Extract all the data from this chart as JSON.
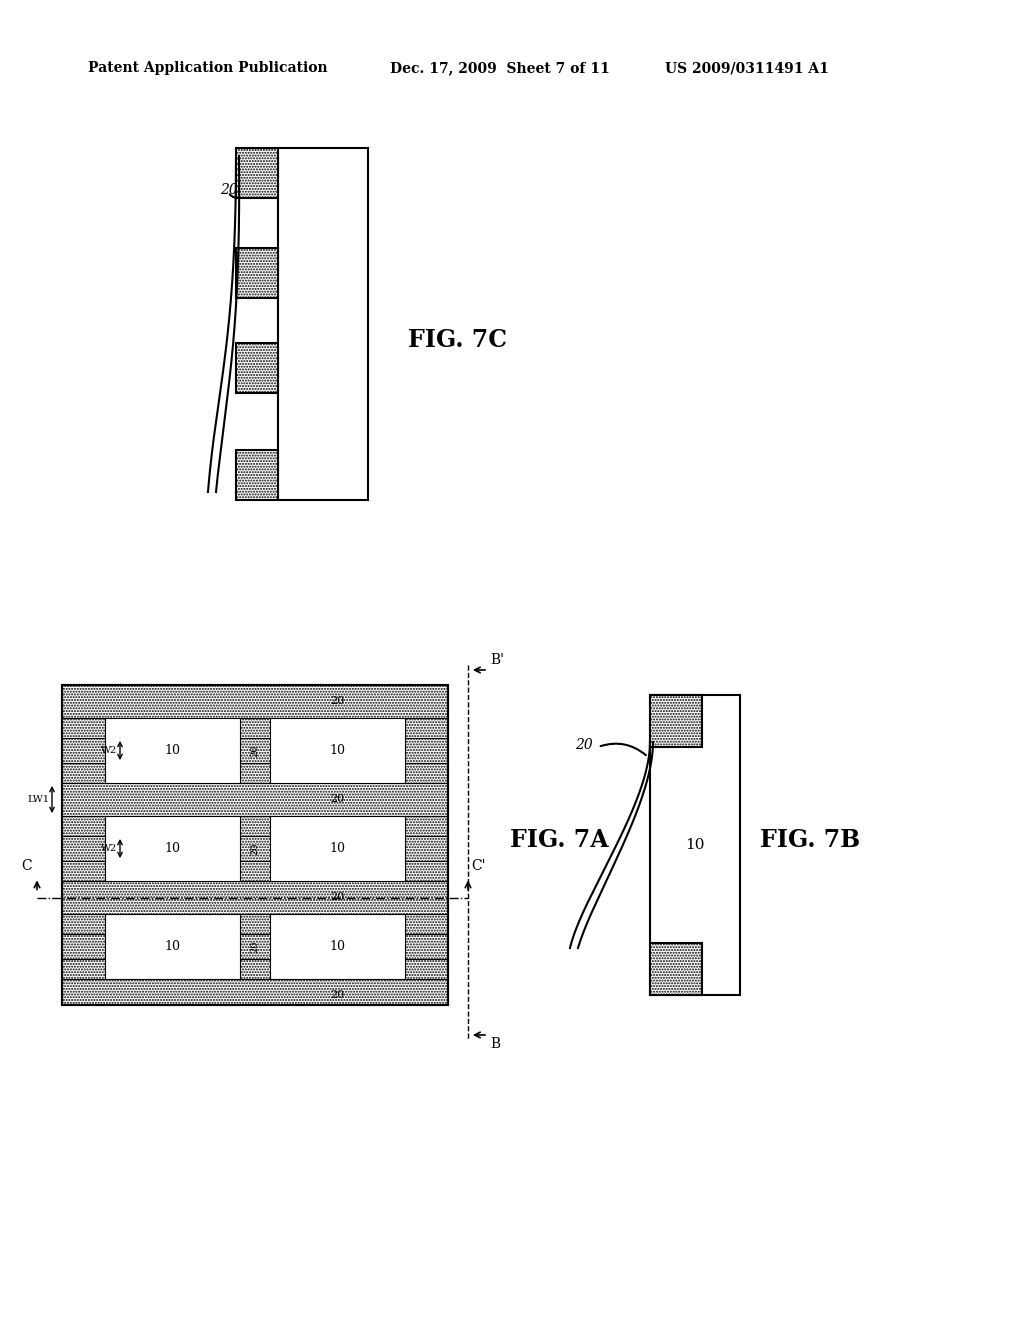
{
  "header_left": "Patent Application Publication",
  "header_mid": "Dec. 17, 2009  Sheet 7 of 11",
  "header_right": "US 2009/0311491 A1",
  "fig7c_label": "FIG. 7C",
  "fig7a_label": "FIG. 7A",
  "fig7b_label": "FIG. 7B",
  "bg_color": "#ffffff",
  "line_color": "#000000"
}
